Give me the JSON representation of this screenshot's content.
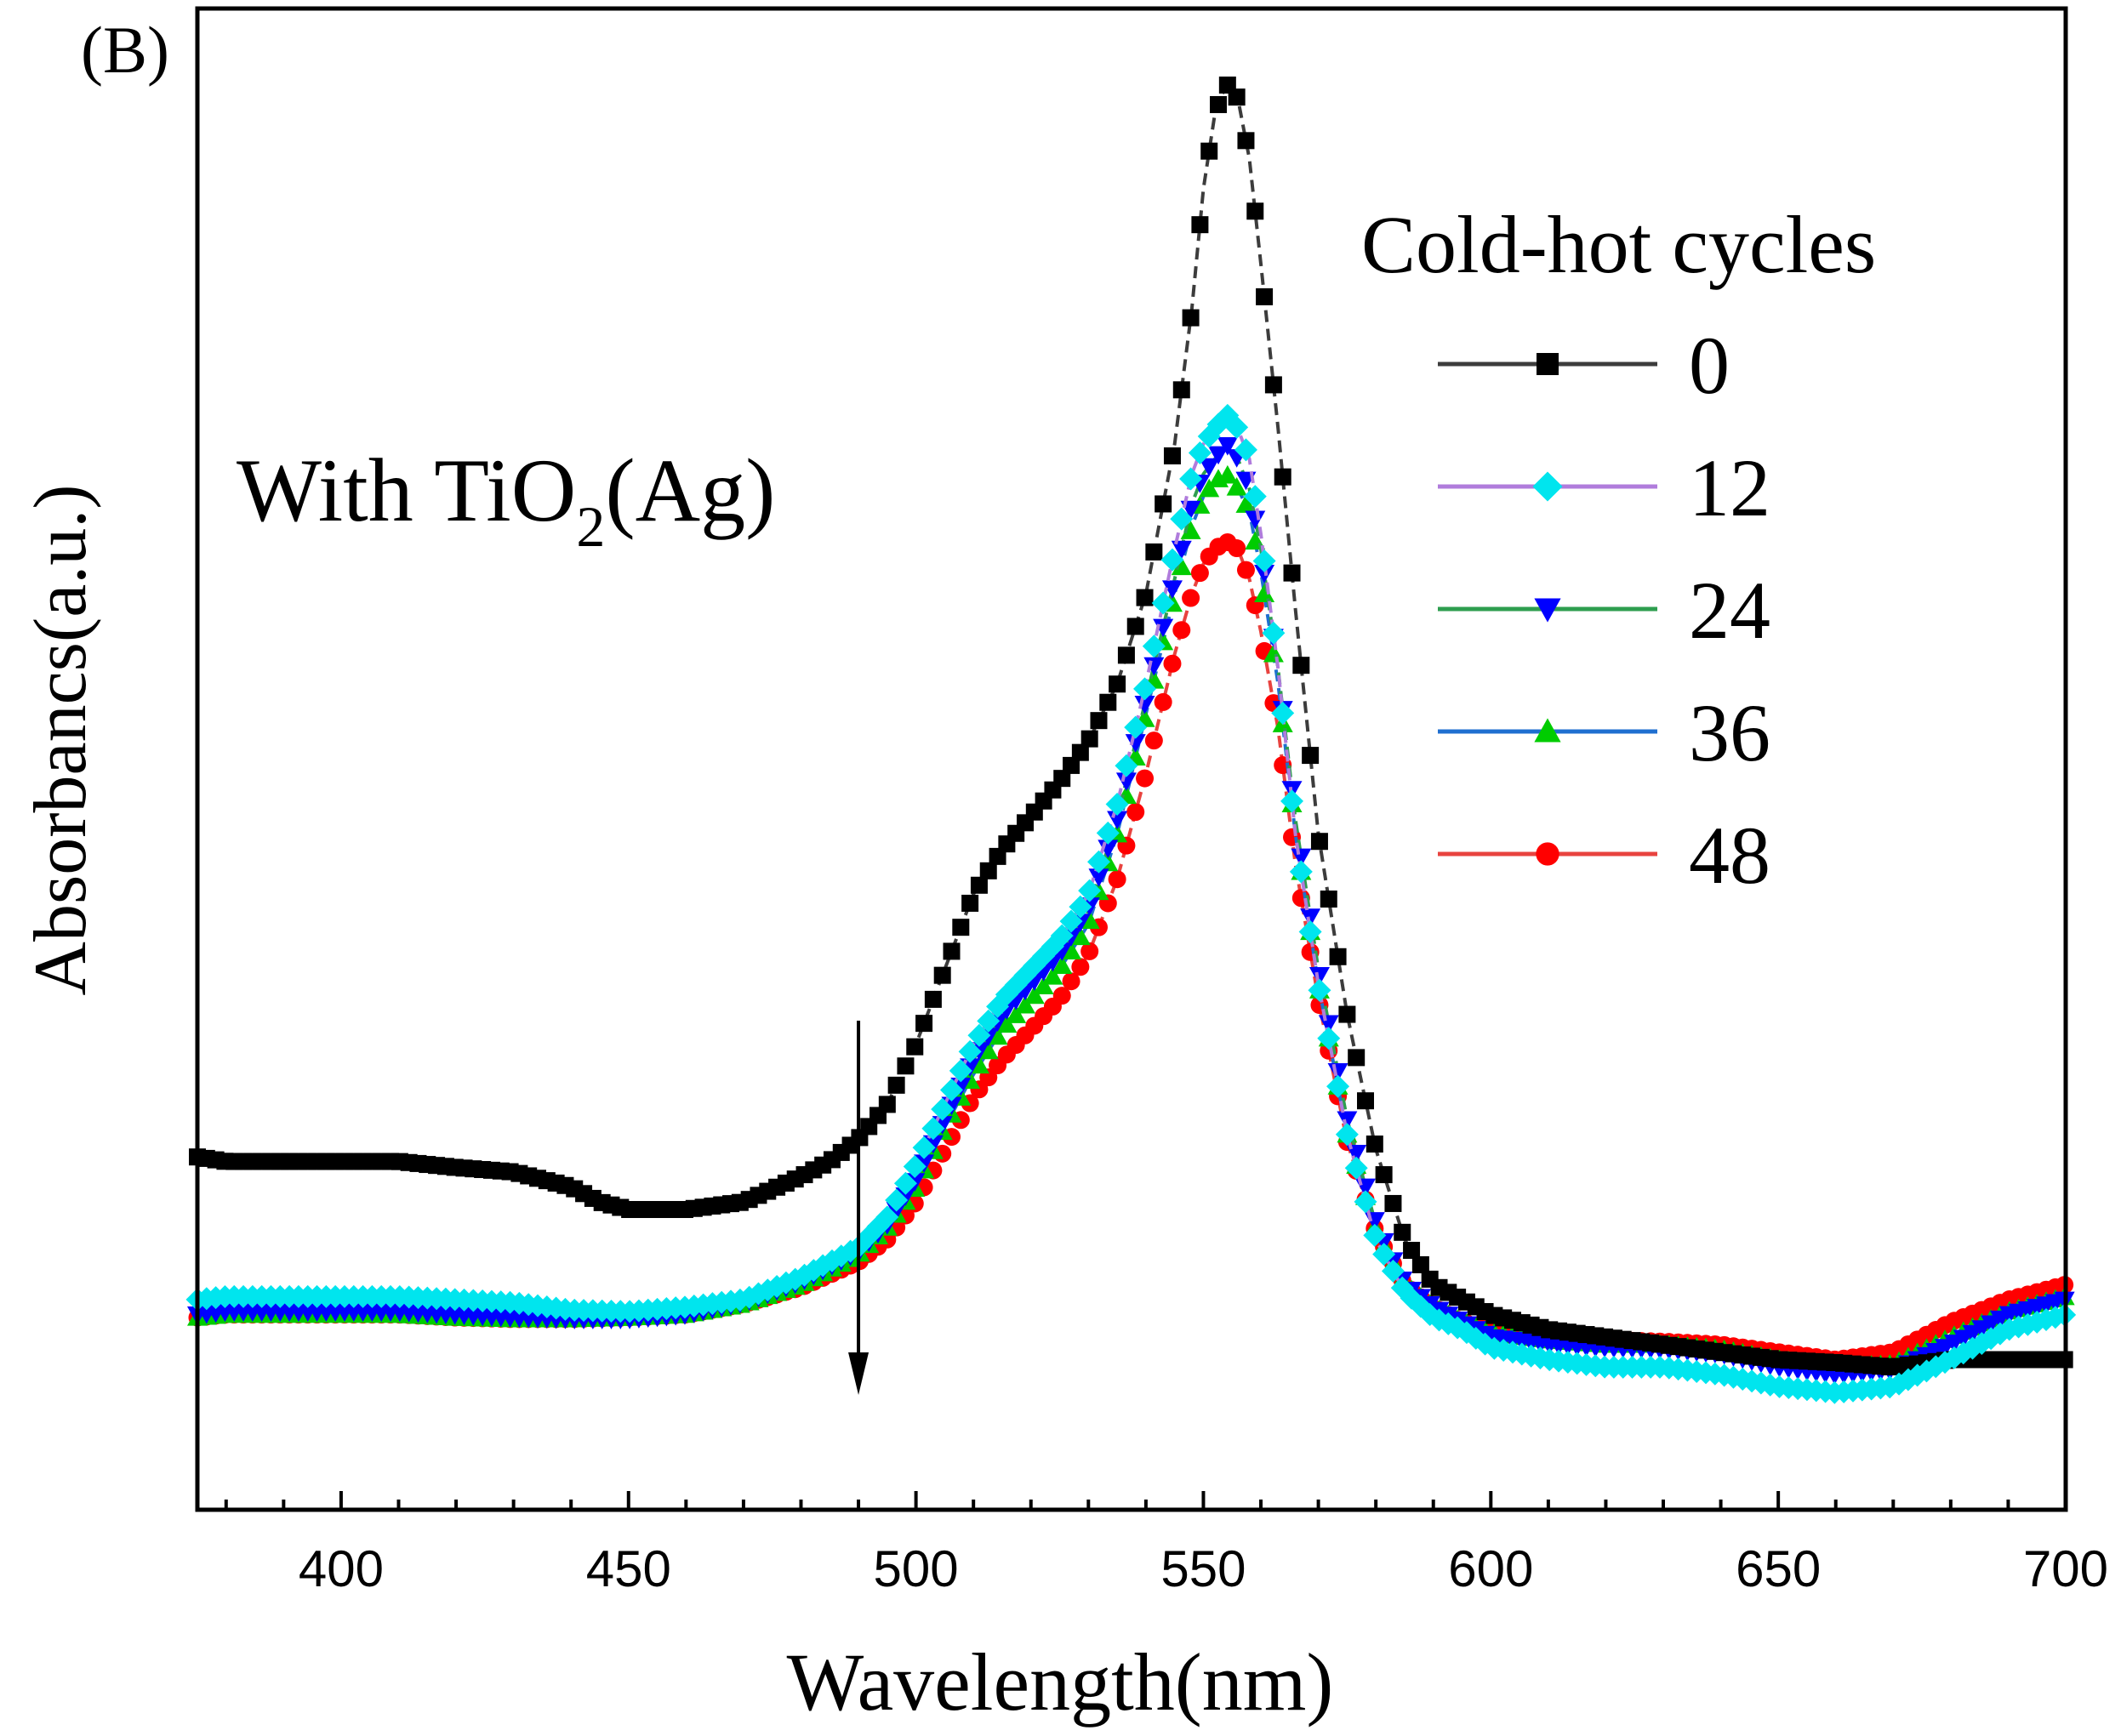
{
  "chart_data": {
    "type": "line",
    "panel_label": "(B)",
    "annotation": {
      "text": "With TiO",
      "subscript": "2",
      "suffix": "(Ag)"
    },
    "xlabel": "Wavelength(nm)",
    "ylabel": "Absorbancs(a.u.)",
    "xlim": [
      375,
      700
    ],
    "ylim": [
      0,
      1
    ],
    "xticks": [
      400,
      450,
      500,
      550,
      600,
      650,
      700
    ],
    "legend_title": "Cold-hot cycles",
    "arrow_x": 490,
    "series": [
      {
        "name": "0",
        "color": "#000000",
        "line_color": "#3c3c3c",
        "marker": "square",
        "points": [
          [
            375,
            0.235
          ],
          [
            380,
            0.232
          ],
          [
            390,
            0.232
          ],
          [
            400,
            0.232
          ],
          [
            410,
            0.232
          ],
          [
            420,
            0.228
          ],
          [
            430,
            0.225
          ],
          [
            440,
            0.215
          ],
          [
            445,
            0.205
          ],
          [
            450,
            0.2
          ],
          [
            460,
            0.2
          ],
          [
            470,
            0.205
          ],
          [
            480,
            0.222
          ],
          [
            485,
            0.232
          ],
          [
            490,
            0.247
          ],
          [
            495,
            0.27
          ],
          [
            500,
            0.31
          ],
          [
            505,
            0.36
          ],
          [
            510,
            0.41
          ],
          [
            515,
            0.44
          ],
          [
            520,
            0.462
          ],
          [
            525,
            0.485
          ],
          [
            530,
            0.512
          ],
          [
            535,
            0.55
          ],
          [
            540,
            0.61
          ],
          [
            545,
            0.71
          ],
          [
            548,
            0.8
          ],
          [
            550,
            0.88
          ],
          [
            552,
            0.93
          ],
          [
            554,
            0.95
          ],
          [
            556,
            0.94
          ],
          [
            558,
            0.9
          ],
          [
            560,
            0.83
          ],
          [
            563,
            0.72
          ],
          [
            566,
            0.6
          ],
          [
            570,
            0.45
          ],
          [
            575,
            0.33
          ],
          [
            580,
            0.24
          ],
          [
            585,
            0.18
          ],
          [
            590,
            0.15
          ],
          [
            595,
            0.14
          ],
          [
            600,
            0.13
          ],
          [
            610,
            0.12
          ],
          [
            620,
            0.115
          ],
          [
            630,
            0.11
          ],
          [
            640,
            0.105
          ],
          [
            650,
            0.1
          ],
          [
            660,
            0.098
          ],
          [
            670,
            0.095
          ],
          [
            680,
            0.1
          ],
          [
            690,
            0.1
          ],
          [
            700,
            0.1
          ]
        ]
      },
      {
        "name": "12",
        "color": "#00e5ee",
        "line_color": "#b07cdc",
        "marker": "diamond",
        "points": [
          [
            375,
            0.14
          ],
          [
            380,
            0.142
          ],
          [
            390,
            0.142
          ],
          [
            400,
            0.142
          ],
          [
            410,
            0.142
          ],
          [
            420,
            0.14
          ],
          [
            430,
            0.138
          ],
          [
            440,
            0.133
          ],
          [
            450,
            0.132
          ],
          [
            460,
            0.135
          ],
          [
            470,
            0.14
          ],
          [
            480,
            0.155
          ],
          [
            490,
            0.175
          ],
          [
            495,
            0.195
          ],
          [
            500,
            0.23
          ],
          [
            505,
            0.27
          ],
          [
            510,
            0.31
          ],
          [
            515,
            0.34
          ],
          [
            520,
            0.36
          ],
          [
            525,
            0.38
          ],
          [
            530,
            0.41
          ],
          [
            535,
            0.47
          ],
          [
            540,
            0.55
          ],
          [
            545,
            0.64
          ],
          [
            548,
            0.69
          ],
          [
            550,
            0.71
          ],
          [
            552,
            0.72
          ],
          [
            554,
            0.73
          ],
          [
            556,
            0.72
          ],
          [
            558,
            0.7
          ],
          [
            560,
            0.65
          ],
          [
            563,
            0.56
          ],
          [
            566,
            0.45
          ],
          [
            570,
            0.35
          ],
          [
            575,
            0.25
          ],
          [
            580,
            0.18
          ],
          [
            585,
            0.145
          ],
          [
            590,
            0.128
          ],
          [
            595,
            0.12
          ],
          [
            600,
            0.108
          ],
          [
            610,
            0.1
          ],
          [
            620,
            0.095
          ],
          [
            630,
            0.095
          ],
          [
            640,
            0.09
          ],
          [
            650,
            0.082
          ],
          [
            660,
            0.078
          ],
          [
            670,
            0.082
          ],
          [
            680,
            0.1
          ],
          [
            690,
            0.12
          ],
          [
            700,
            0.13
          ]
        ]
      },
      {
        "name": "24",
        "color": "#0000ff",
        "line_color": "#2e9e4f",
        "marker": "triangle-down",
        "points": [
          [
            375,
            0.13
          ],
          [
            380,
            0.132
          ],
          [
            390,
            0.132
          ],
          [
            400,
            0.132
          ],
          [
            410,
            0.132
          ],
          [
            420,
            0.13
          ],
          [
            430,
            0.128
          ],
          [
            440,
            0.127
          ],
          [
            450,
            0.127
          ],
          [
            460,
            0.13
          ],
          [
            470,
            0.138
          ],
          [
            480,
            0.152
          ],
          [
            490,
            0.172
          ],
          [
            495,
            0.19
          ],
          [
            500,
            0.22
          ],
          [
            505,
            0.26
          ],
          [
            510,
            0.3
          ],
          [
            515,
            0.33
          ],
          [
            520,
            0.35
          ],
          [
            525,
            0.37
          ],
          [
            530,
            0.4
          ],
          [
            535,
            0.46
          ],
          [
            540,
            0.54
          ],
          [
            545,
            0.62
          ],
          [
            548,
            0.67
          ],
          [
            550,
            0.69
          ],
          [
            552,
            0.7
          ],
          [
            554,
            0.71
          ],
          [
            556,
            0.7
          ],
          [
            558,
            0.68
          ],
          [
            560,
            0.64
          ],
          [
            563,
            0.56
          ],
          [
            566,
            0.46
          ],
          [
            570,
            0.36
          ],
          [
            575,
            0.26
          ],
          [
            580,
            0.19
          ],
          [
            585,
            0.15
          ],
          [
            590,
            0.135
          ],
          [
            595,
            0.125
          ],
          [
            600,
            0.115
          ],
          [
            610,
            0.11
          ],
          [
            620,
            0.108
          ],
          [
            630,
            0.107
          ],
          [
            640,
            0.104
          ],
          [
            650,
            0.095
          ],
          [
            660,
            0.09
          ],
          [
            670,
            0.093
          ],
          [
            680,
            0.11
          ],
          [
            690,
            0.13
          ],
          [
            700,
            0.14
          ]
        ]
      },
      {
        "name": "36",
        "color": "#00cc00",
        "line_color": "#1f6fd0",
        "marker": "triangle-up",
        "points": [
          [
            375,
            0.128
          ],
          [
            380,
            0.13
          ],
          [
            390,
            0.13
          ],
          [
            400,
            0.13
          ],
          [
            410,
            0.13
          ],
          [
            420,
            0.128
          ],
          [
            430,
            0.127
          ],
          [
            440,
            0.127
          ],
          [
            450,
            0.128
          ],
          [
            460,
            0.13
          ],
          [
            470,
            0.137
          ],
          [
            480,
            0.15
          ],
          [
            490,
            0.17
          ],
          [
            495,
            0.188
          ],
          [
            500,
            0.215
          ],
          [
            505,
            0.255
          ],
          [
            510,
            0.29
          ],
          [
            515,
            0.32
          ],
          [
            520,
            0.34
          ],
          [
            525,
            0.36
          ],
          [
            530,
            0.39
          ],
          [
            535,
            0.45
          ],
          [
            540,
            0.53
          ],
          [
            545,
            0.61
          ],
          [
            548,
            0.655
          ],
          [
            550,
            0.675
          ],
          [
            552,
            0.685
          ],
          [
            554,
            0.69
          ],
          [
            556,
            0.68
          ],
          [
            558,
            0.665
          ],
          [
            560,
            0.625
          ],
          [
            563,
            0.55
          ],
          [
            566,
            0.45
          ],
          [
            570,
            0.35
          ],
          [
            575,
            0.25
          ],
          [
            580,
            0.185
          ],
          [
            585,
            0.15
          ],
          [
            590,
            0.135
          ],
          [
            595,
            0.125
          ],
          [
            600,
            0.118
          ],
          [
            610,
            0.113
          ],
          [
            620,
            0.11
          ],
          [
            630,
            0.11
          ],
          [
            640,
            0.107
          ],
          [
            650,
            0.1
          ],
          [
            660,
            0.095
          ],
          [
            670,
            0.097
          ],
          [
            680,
            0.115
          ],
          [
            690,
            0.132
          ],
          [
            700,
            0.142
          ]
        ]
      },
      {
        "name": "48",
        "color": "#ff0000",
        "line_color": "#e8433f",
        "marker": "circle",
        "points": [
          [
            375,
            0.128
          ],
          [
            380,
            0.13
          ],
          [
            390,
            0.13
          ],
          [
            400,
            0.13
          ],
          [
            410,
            0.13
          ],
          [
            420,
            0.128
          ],
          [
            430,
            0.127
          ],
          [
            440,
            0.127
          ],
          [
            450,
            0.128
          ],
          [
            460,
            0.13
          ],
          [
            470,
            0.137
          ],
          [
            480,
            0.148
          ],
          [
            490,
            0.165
          ],
          [
            495,
            0.18
          ],
          [
            500,
            0.205
          ],
          [
            505,
            0.24
          ],
          [
            510,
            0.275
          ],
          [
            515,
            0.3
          ],
          [
            520,
            0.32
          ],
          [
            525,
            0.34
          ],
          [
            530,
            0.37
          ],
          [
            535,
            0.42
          ],
          [
            540,
            0.49
          ],
          [
            545,
            0.57
          ],
          [
            548,
            0.61
          ],
          [
            550,
            0.63
          ],
          [
            552,
            0.64
          ],
          [
            554,
            0.645
          ],
          [
            556,
            0.64
          ],
          [
            558,
            0.62
          ],
          [
            560,
            0.585
          ],
          [
            563,
            0.52
          ],
          [
            566,
            0.43
          ],
          [
            570,
            0.34
          ],
          [
            575,
            0.245
          ],
          [
            580,
            0.185
          ],
          [
            585,
            0.15
          ],
          [
            590,
            0.135
          ],
          [
            595,
            0.125
          ],
          [
            600,
            0.12
          ],
          [
            610,
            0.115
          ],
          [
            620,
            0.113
          ],
          [
            630,
            0.112
          ],
          [
            640,
            0.11
          ],
          [
            650,
            0.105
          ],
          [
            660,
            0.1
          ],
          [
            670,
            0.105
          ],
          [
            680,
            0.125
          ],
          [
            690,
            0.14
          ],
          [
            700,
            0.15
          ]
        ]
      }
    ]
  }
}
